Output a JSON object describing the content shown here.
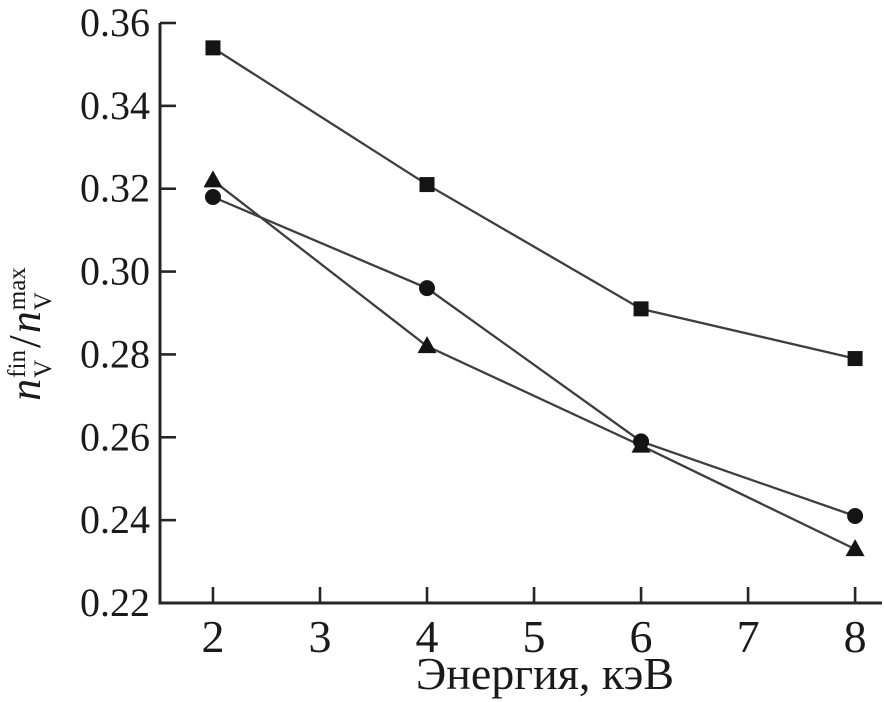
{
  "chart_data": {
    "type": "line",
    "title": "",
    "xlabel": "Энергия, кэВ",
    "ylabel": "n_V^fin / n_V^max",
    "ylabel_parts": {
      "var1": "n",
      "sup1": "fin",
      "sub1": "V",
      "slash": "/",
      "var2": "n",
      "sup2": "max",
      "sub2": "V"
    },
    "x": [
      2,
      4,
      6,
      8
    ],
    "series": [
      {
        "name": "series-squares",
        "marker": "square",
        "values": [
          0.354,
          0.321,
          0.291,
          0.279
        ]
      },
      {
        "name": "series-triangles",
        "marker": "triangle",
        "values": [
          0.322,
          0.282,
          0.258,
          0.233
        ]
      },
      {
        "name": "series-circles",
        "marker": "circle",
        "values": [
          0.318,
          0.296,
          0.259,
          0.241
        ]
      }
    ],
    "xlim": [
      1.505,
      8.27
    ],
    "ylim": [
      0.22,
      0.36
    ],
    "x_ticks": [
      2,
      3,
      4,
      5,
      6,
      7,
      8
    ],
    "x_tick_labels": [
      "2",
      "3",
      "4",
      "5",
      "6",
      "7",
      "8"
    ],
    "y_ticks": [
      0.22,
      0.24,
      0.26,
      0.28,
      0.3,
      0.32,
      0.34,
      0.36
    ],
    "y_tick_labels": [
      "0.22",
      "0.24",
      "0.26",
      "0.28",
      "0.30",
      "0.32",
      "0.34",
      "0.36"
    ],
    "grid": false,
    "legend": "none",
    "colors": {
      "background": "#ffffff",
      "axis": "#262626",
      "line": "#3e3e3e",
      "marker": "#141414",
      "text": "#1a1a1a"
    }
  }
}
